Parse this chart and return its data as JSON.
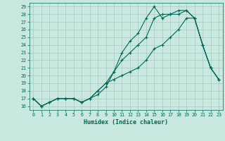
{
  "xlabel": "Humidex (Indice chaleur)",
  "ylabel": "",
  "xlim": [
    -0.5,
    23.5
  ],
  "ylim": [
    15.5,
    29.5
  ],
  "xticks": [
    0,
    1,
    2,
    3,
    4,
    5,
    6,
    7,
    8,
    9,
    10,
    11,
    12,
    13,
    14,
    15,
    16,
    17,
    18,
    19,
    20,
    21,
    22,
    23
  ],
  "yticks": [
    16,
    17,
    18,
    19,
    20,
    21,
    22,
    23,
    24,
    25,
    26,
    27,
    28,
    29
  ],
  "bg_color": "#c8e8e0",
  "grid_color": "#a8c8c0",
  "line_color": "#006858",
  "line1": [
    17.0,
    16.0,
    16.5,
    17.0,
    17.0,
    17.0,
    16.5,
    17.0,
    17.5,
    18.5,
    20.5,
    23.0,
    24.5,
    25.5,
    27.5,
    29.0,
    27.5,
    28.0,
    28.0,
    28.5,
    27.5,
    24.0,
    21.0,
    19.5
  ],
  "line2": [
    17.0,
    16.0,
    16.5,
    17.0,
    17.0,
    17.0,
    16.5,
    17.0,
    18.0,
    19.0,
    20.5,
    22.0,
    23.0,
    24.0,
    25.0,
    27.5,
    28.0,
    28.0,
    28.5,
    28.5,
    27.5,
    24.0,
    21.0,
    19.5
  ],
  "line3": [
    17.0,
    16.0,
    16.5,
    17.0,
    17.0,
    17.0,
    16.5,
    17.0,
    18.0,
    19.0,
    19.5,
    20.0,
    20.5,
    21.0,
    22.0,
    23.5,
    24.0,
    25.0,
    26.0,
    27.5,
    27.5,
    24.0,
    21.0,
    19.5
  ],
  "marker": "+",
  "markersize": 3.0,
  "linewidth": 0.8,
  "tick_fontsize": 4.8,
  "label_fontsize": 6.0
}
